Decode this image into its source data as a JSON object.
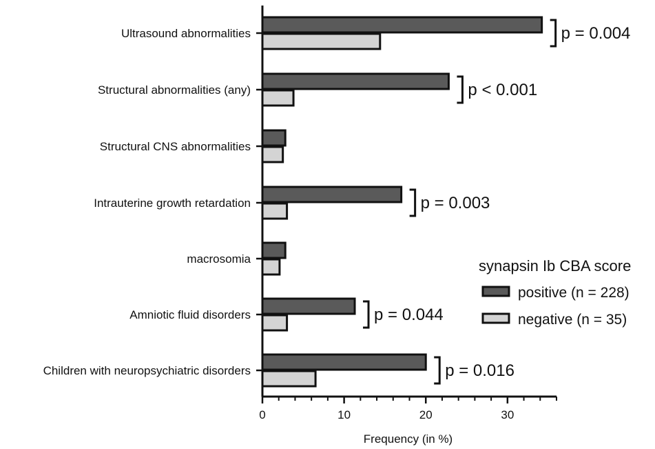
{
  "chart_data": {
    "type": "bar",
    "orientation": "horizontal",
    "xlabel": "Frequency (in %)",
    "xlim": [
      0,
      36
    ],
    "xticks": [
      0,
      10,
      20,
      30
    ],
    "grid": false,
    "legend_title": "synapsin Ib CBA score",
    "legend_position": "right",
    "categories": [
      "Ultrasound abnormalities",
      "Structural abnormalities (any)",
      "Structural CNS abnormalities",
      "Intrauterine growth retardation",
      "macrosomia",
      "Amniotic fluid disorders",
      "Children with neuropsychiatric disorders"
    ],
    "series": [
      {
        "name": "positive (n = 228)",
        "color": "#5a5a5a",
        "values": [
          34.2,
          22.8,
          2.8,
          17.0,
          2.8,
          11.3,
          20.0
        ]
      },
      {
        "name": "negative (n = 35)",
        "color": "#d4d4d4",
        "values": [
          14.4,
          3.8,
          2.5,
          3.0,
          2.1,
          3.0,
          6.5
        ]
      }
    ],
    "annotations": [
      {
        "category_index": 0,
        "text": "p = 0.004"
      },
      {
        "category_index": 1,
        "text": "p < 0.001"
      },
      {
        "category_index": 3,
        "text": "p = 0.003"
      },
      {
        "category_index": 5,
        "text": "p = 0.044"
      },
      {
        "category_index": 6,
        "text": "p = 0.016"
      }
    ]
  }
}
